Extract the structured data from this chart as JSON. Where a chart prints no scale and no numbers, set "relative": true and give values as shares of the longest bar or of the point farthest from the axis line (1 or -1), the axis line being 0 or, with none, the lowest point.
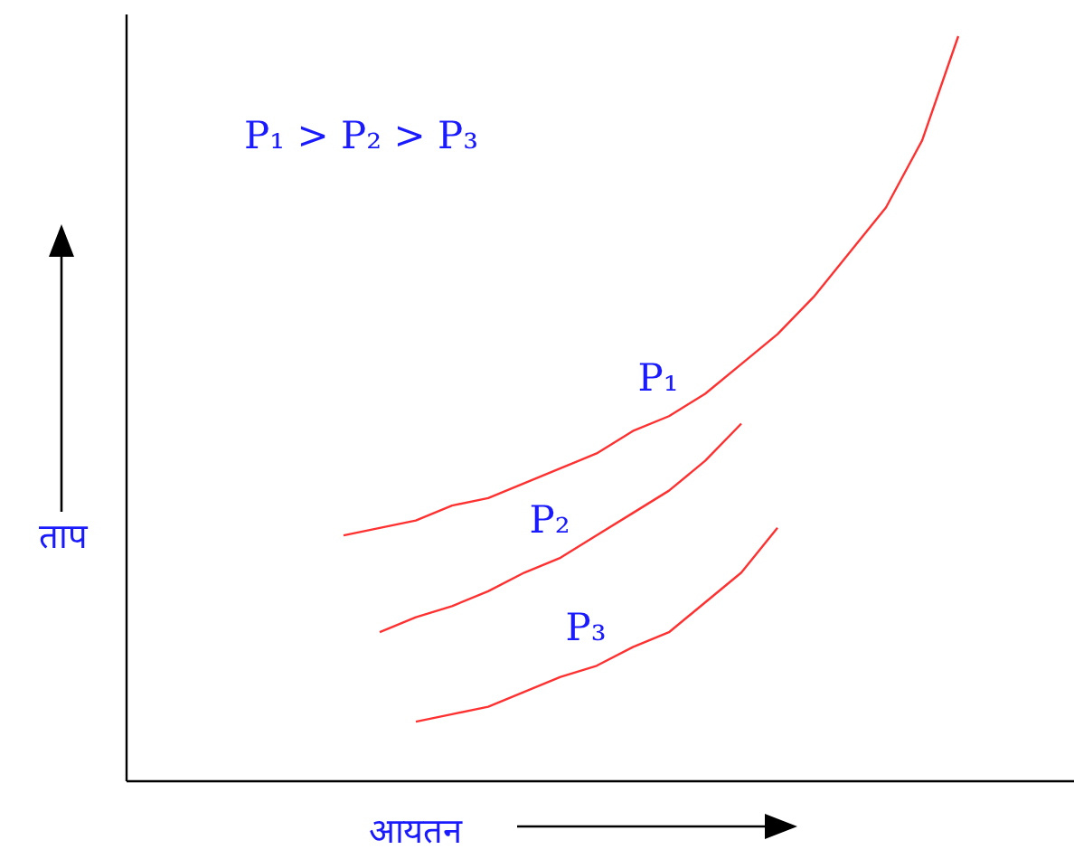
{
  "chart_data": {
    "type": "line",
    "relative": true,
    "xlabel": "आयतन",
    "ylabel": "ताप",
    "annotations": [
      "P₁ > P₂ > P₃"
    ],
    "categories": [
      null,
      null,
      null,
      null,
      null,
      null,
      null,
      null,
      null,
      null,
      null,
      null,
      null,
      null,
      null,
      null,
      null,
      null,
      null,
      null,
      null,
      null,
      null,
      null,
      null,
      null,
      null
    ],
    "series": [
      {
        "name": "P₁",
        "color": "#ff3030",
        "values": [
          null,
          null,
          null,
          null,
          null,
          null,
          0.33,
          0.34,
          0.35,
          0.37,
          0.38,
          0.4,
          0.42,
          0.44,
          0.47,
          0.49,
          0.52,
          0.56,
          0.6,
          0.65,
          0.71,
          0.77,
          0.86,
          1.0,
          null,
          null,
          null
        ]
      },
      {
        "name": "P₂",
        "color": "#ff3030",
        "values": [
          null,
          null,
          null,
          null,
          null,
          null,
          null,
          0.2,
          0.22,
          0.235,
          0.255,
          0.28,
          0.3,
          0.33,
          0.36,
          0.39,
          0.43,
          0.48,
          null,
          null,
          null,
          null,
          null,
          null,
          null,
          null,
          null
        ]
      },
      {
        "name": "P₃",
        "color": "#ff3030",
        "values": [
          null,
          null,
          null,
          null,
          null,
          null,
          null,
          null,
          0.08,
          0.09,
          0.1,
          0.12,
          0.14,
          0.155,
          0.18,
          0.2,
          0.24,
          0.28,
          0.34,
          null,
          null,
          null,
          null,
          null,
          null,
          null,
          null
        ]
      }
    ],
    "title": null
  }
}
